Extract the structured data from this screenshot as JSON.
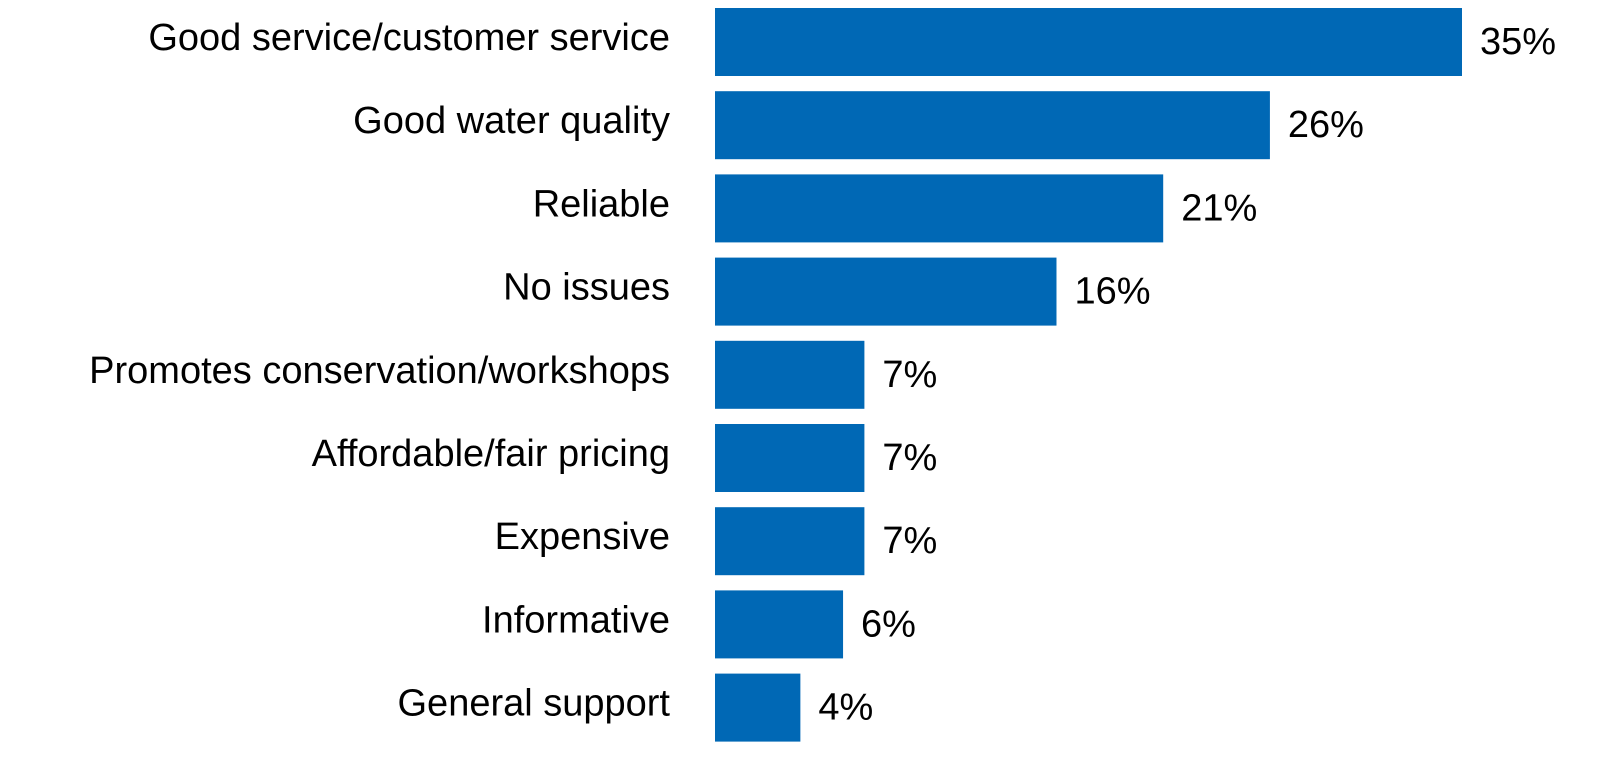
{
  "chart_data": {
    "type": "bar",
    "orientation": "horizontal",
    "categories": [
      "Good service/customer service",
      "Good water quality",
      "Reliable",
      "No issues",
      "Promotes conservation/workshops",
      "Affordable/fair pricing",
      "Expensive",
      "Informative",
      "General support"
    ],
    "values": [
      35,
      26,
      21,
      16,
      7,
      7,
      7,
      6,
      4
    ],
    "value_labels": [
      "35%",
      "26%",
      "21%",
      "16%",
      "7%",
      "7%",
      "7%",
      "6%",
      "4%"
    ],
    "color": "#0068b5"
  }
}
